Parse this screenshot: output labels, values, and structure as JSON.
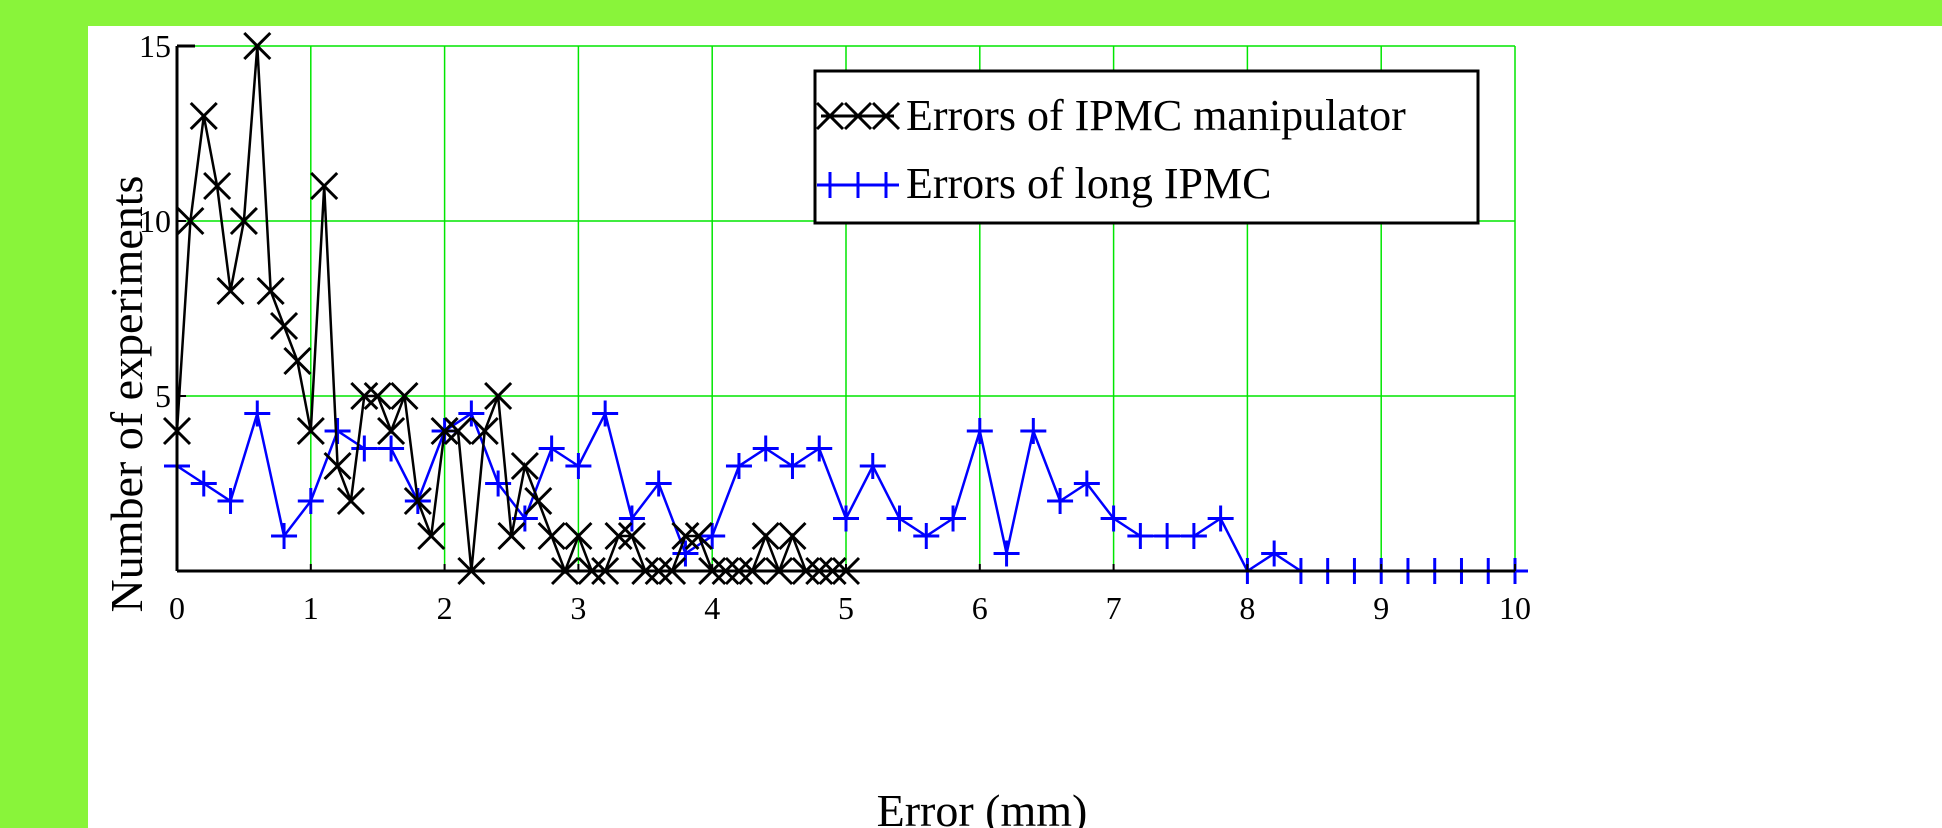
{
  "chart_data": {
    "type": "line",
    "title": "",
    "xlabel": "Error (mm)",
    "ylabel": "Number of experiments",
    "xlim": [
      0,
      10
    ],
    "ylim": [
      0,
      15
    ],
    "xticks": [
      0,
      1,
      2,
      3,
      4,
      5,
      6,
      7,
      8,
      9,
      10
    ],
    "yticks": [
      5,
      10,
      15
    ],
    "grid": true,
    "legend_position": "top-right",
    "series": [
      {
        "name": "Errors of IPMC manipulator",
        "marker": "x",
        "color": "#000000",
        "x": [
          0,
          0.1,
          0.2,
          0.3,
          0.4,
          0.5,
          0.6,
          0.7,
          0.8,
          0.9,
          1.0,
          1.1,
          1.2,
          1.3,
          1.4,
          1.5,
          1.6,
          1.7,
          1.8,
          1.9,
          2.0,
          2.1,
          2.2,
          2.3,
          2.4,
          2.5,
          2.6,
          2.7,
          2.8,
          2.9,
          3.0,
          3.1,
          3.2,
          3.3,
          3.4,
          3.5,
          3.6,
          3.7,
          3.8,
          3.9,
          4.0,
          4.1,
          4.2,
          4.3,
          4.4,
          4.5,
          4.6,
          4.7,
          4.8,
          4.9,
          5.0
        ],
        "y": [
          4,
          10,
          13,
          11,
          8,
          10,
          15,
          8,
          7,
          6,
          4,
          11,
          3,
          2,
          5,
          5,
          4,
          5,
          2,
          1,
          4,
          4,
          0,
          4,
          5,
          1,
          3,
          2,
          1,
          0,
          1,
          0,
          0,
          1,
          1,
          0,
          0,
          0,
          1,
          1,
          0,
          0,
          0,
          0,
          1,
          0,
          1,
          0,
          0,
          0,
          0
        ]
      },
      {
        "name": "Errors of long IPMC",
        "marker": "+",
        "color": "#0000ff",
        "x": [
          0.0,
          0.2,
          0.4,
          0.6,
          0.8,
          1.0,
          1.2,
          1.4,
          1.6,
          1.8,
          2.0,
          2.2,
          2.4,
          2.6,
          2.8,
          3.0,
          3.2,
          3.4,
          3.6,
          3.8,
          4.0,
          4.2,
          4.4,
          4.6,
          4.8,
          5.0,
          5.2,
          5.4,
          5.6,
          5.8,
          6.0,
          6.2,
          6.4,
          6.6,
          6.8,
          7.0,
          7.2,
          7.4,
          7.6,
          7.8,
          8.0,
          8.2,
          8.4,
          8.6,
          8.8,
          9.0,
          9.2,
          9.4,
          9.6,
          9.8,
          10.0
        ],
        "y": [
          3,
          2.5,
          2,
          4.5,
          1,
          2,
          4,
          3.5,
          3.5,
          2,
          4,
          4.5,
          2.5,
          1.5,
          3.5,
          3,
          4.5,
          1.5,
          2.5,
          0.5,
          1,
          3,
          3.5,
          3,
          3.5,
          1.5,
          3,
          1.5,
          1,
          1.5,
          4,
          0.5,
          4,
          2,
          2.5,
          1.5,
          1,
          1,
          1,
          1.5,
          0,
          0.5,
          0,
          0,
          0,
          0,
          0,
          0,
          0,
          0,
          0
        ]
      }
    ]
  },
  "xtick_labels": [
    "0",
    "1",
    "2",
    "3",
    "4",
    "5",
    "6",
    "7",
    "8",
    "9",
    "10"
  ],
  "ytick_labels": [
    "5",
    "10",
    "15"
  ]
}
